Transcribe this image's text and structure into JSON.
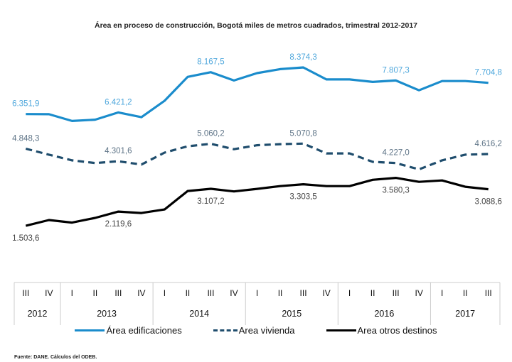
{
  "chart_data": {
    "type": "line",
    "title": "Área en proceso de construcción, Bogotá miles de metros cuadrados, trimestral 2012-2017",
    "xlabel": "",
    "ylabel": "",
    "ylim": [
      0,
      9500
    ],
    "grid": false,
    "legend_position": "bottom-center",
    "quarters": [
      "III",
      "IV",
      "I",
      "II",
      "III",
      "IV",
      "I",
      "II",
      "III",
      "IV",
      "I",
      "II",
      "III",
      "IV",
      "I",
      "II",
      "III",
      "IV",
      "I",
      "II",
      "III"
    ],
    "years": [
      {
        "label": "2012",
        "span": 2
      },
      {
        "label": "2013",
        "span": 4
      },
      {
        "label": "2014",
        "span": 4
      },
      {
        "label": "2015",
        "span": 4
      },
      {
        "label": "2016",
        "span": 4
      },
      {
        "label": "2017",
        "span": 3
      }
    ],
    "series": [
      {
        "name": "Área edificaciones",
        "color": "#1a8ccc",
        "label_color": "#4ea7dc",
        "style": "solid",
        "values": [
          6351.9,
          6345,
          6051,
          6106,
          6421.2,
          6215,
          6926,
          7964,
          8167.5,
          7809,
          8128,
          8300,
          8374.3,
          7855,
          7855,
          7745,
          7807.3,
          7381,
          7782,
          7782,
          7704.8
        ],
        "labels": [
          {
            "index": 0,
            "text": "6.351,9",
            "pos": "above"
          },
          {
            "index": 4,
            "text": "6.421,2",
            "pos": "above"
          },
          {
            "index": 8,
            "text": "8.167,5",
            "pos": "above"
          },
          {
            "index": 12,
            "text": "8.374,3",
            "pos": "above"
          },
          {
            "index": 16,
            "text": "7.807,3",
            "pos": "above"
          },
          {
            "index": 20,
            "text": "7.704,8",
            "pos": "above"
          }
        ]
      },
      {
        "name": "Area vivienda",
        "color": "#1f4d6d",
        "label_color": "#5d7386",
        "style": "dashed",
        "values": [
          4848.3,
          4588,
          4343,
          4224,
          4301.6,
          4161,
          4679,
          4952,
          5060.2,
          4825,
          5000,
          5045,
          5070.8,
          4643,
          4643,
          4279,
          4227.0,
          3951,
          4343,
          4588,
          4616.2
        ],
        "labels": [
          {
            "index": 0,
            "text": "4.848,3",
            "pos": "above"
          },
          {
            "index": 4,
            "text": "4.301,6",
            "pos": "above"
          },
          {
            "index": 8,
            "text": "5.060,2",
            "pos": "above"
          },
          {
            "index": 12,
            "text": "5.070,8",
            "pos": "above"
          },
          {
            "index": 16,
            "text": "4.227,0",
            "pos": "above"
          },
          {
            "index": 20,
            "text": "4.616,2",
            "pos": "above"
          }
        ]
      },
      {
        "name": "Area otros destinos",
        "color": "#000000",
        "label_color": "#444444",
        "style": "solid",
        "values": [
          1503.6,
          1752,
          1642,
          1844,
          2119.6,
          2056,
          2212,
          3012,
          3107.2,
          2994,
          3104,
          3224,
          3303.5,
          3224,
          3224,
          3500,
          3580.3,
          3408,
          3472,
          3196,
          3088.6
        ],
        "labels": [
          {
            "index": 0,
            "text": "1.503,6",
            "pos": "below"
          },
          {
            "index": 4,
            "text": "2.119,6",
            "pos": "below"
          },
          {
            "index": 8,
            "text": "3.107,2",
            "pos": "below"
          },
          {
            "index": 12,
            "text": "3.303,5",
            "pos": "below"
          },
          {
            "index": 16,
            "text": "3.580,3",
            "pos": "below"
          },
          {
            "index": 20,
            "text": "3.088,6",
            "pos": "below"
          }
        ]
      }
    ]
  },
  "source": "Fuente: DANE. Cálculos del ODEB."
}
